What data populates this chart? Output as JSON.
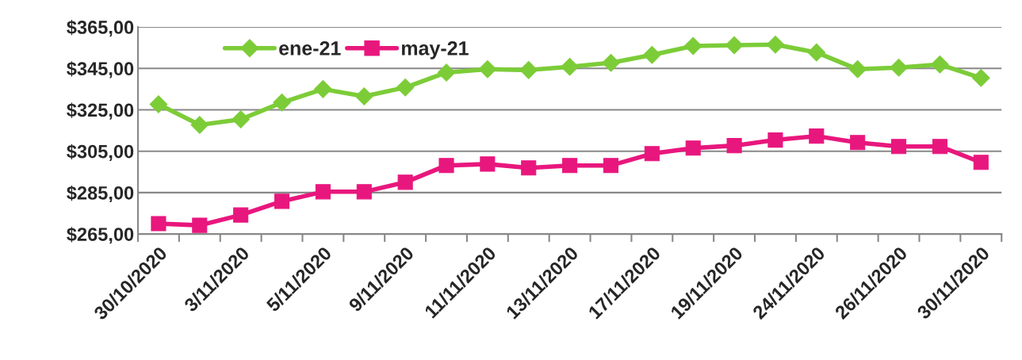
{
  "chart_data": {
    "type": "line",
    "categories": [
      "30/10/2020",
      null,
      "3/11/2020",
      null,
      "5/11/2020",
      null,
      "9/11/2020",
      null,
      "11/11/2020",
      null,
      "13/11/2020",
      null,
      "17/11/2020",
      null,
      "19/11/2020",
      null,
      "24/11/2020",
      null,
      "26/11/2020",
      null,
      "30/11/2020"
    ],
    "series": [
      {
        "name": "ene-21",
        "color": "#7ccc38",
        "marker": "diamond",
        "values": [
          327.7,
          317.7,
          320.4,
          328.5,
          335,
          331.5,
          335.8,
          343,
          344.6,
          344.2,
          345.8,
          347.7,
          351.5,
          355.8,
          356.2,
          356.5,
          352.7,
          344.6,
          345.4,
          346.9,
          340.4
        ]
      },
      {
        "name": "may-21",
        "color": "#e8177d",
        "marker": "square",
        "values": [
          270,
          269.2,
          274.2,
          280.8,
          285.4,
          285.4,
          290,
          298.1,
          298.8,
          296.9,
          298.1,
          298.1,
          303.8,
          306.5,
          307.7,
          310.4,
          312.3,
          309.2,
          307.3,
          307.3,
          299.6
        ]
      }
    ],
    "ylim": [
      265,
      365
    ],
    "yticks": [
      {
        "value": 265,
        "label": "$265,00"
      },
      {
        "value": 285,
        "label": "$285,00"
      },
      {
        "value": 305,
        "label": "$305,00"
      },
      {
        "value": 325,
        "label": "$325,00"
      },
      {
        "value": 345,
        "label": "$345,00"
      },
      {
        "value": 365,
        "label": "$365,00"
      }
    ],
    "grid": "y",
    "legend": "top left",
    "line_style": "solid"
  }
}
